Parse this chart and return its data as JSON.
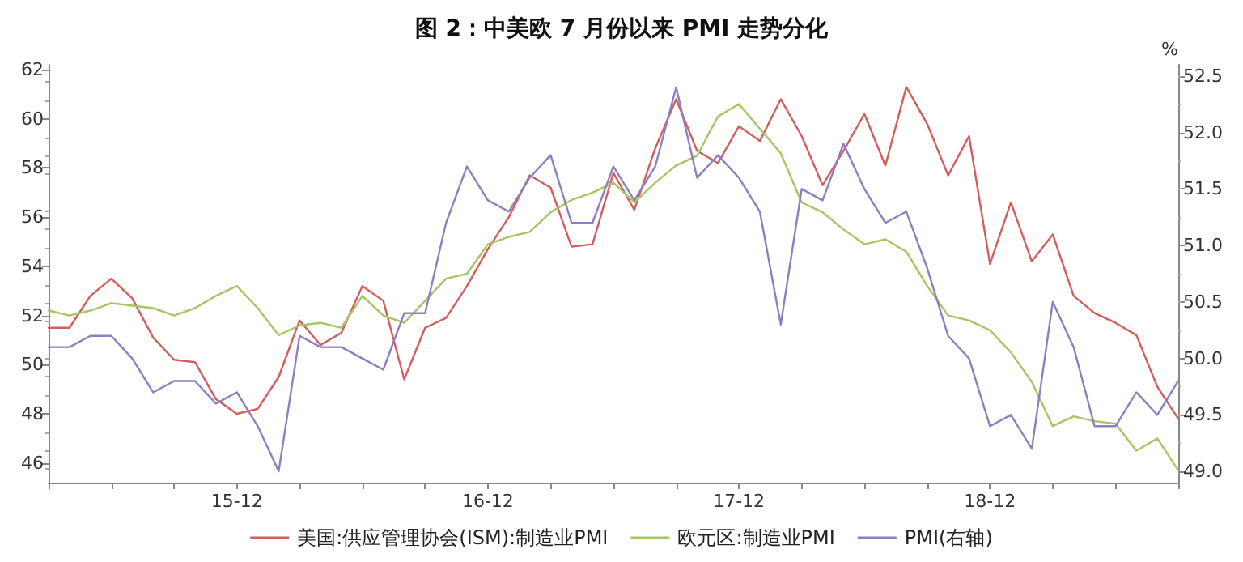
{
  "chart_data": {
    "type": "line",
    "title": "图 2：中美欧 7 月份以来 PMI 走势分化",
    "categories": [
      null,
      null,
      null,
      null,
      null,
      null,
      null,
      null,
      null,
      "15-12",
      null,
      null,
      null,
      null,
      null,
      null,
      null,
      null,
      null,
      null,
      null,
      "16-12",
      null,
      null,
      null,
      null,
      null,
      null,
      null,
      null,
      null,
      null,
      null,
      "17-12",
      null,
      null,
      null,
      null,
      null,
      null,
      null,
      null,
      null,
      null,
      null,
      "18-12",
      null,
      null,
      null,
      null,
      null,
      null,
      null,
      null,
      null
    ],
    "series": [
      {
        "name": "美国:供应管理协会(ISM):制造业PMI",
        "color": "#d45d5d",
        "values": [
          51.5,
          51.5,
          52.8,
          53.5,
          52.7,
          51.1,
          50.2,
          50.1,
          48.6,
          48.0,
          48.2,
          49.5,
          51.8,
          50.8,
          51.3,
          53.2,
          52.6,
          49.4,
          51.5,
          51.9,
          53.2,
          54.7,
          56.0,
          57.7,
          57.2,
          54.8,
          54.9,
          57.8,
          56.3,
          58.8,
          60.8,
          58.7,
          58.2,
          59.7,
          59.1,
          60.8,
          59.3,
          57.3,
          58.7,
          60.2,
          58.1,
          61.3,
          59.8,
          57.7,
          59.3,
          54.1,
          56.6,
          54.2,
          55.3,
          52.8,
          52.1,
          51.7,
          51.2,
          49.1,
          47.8
        ]
      },
      {
        "name": "欧元区:制造业PMI",
        "color": "#a5c663",
        "values": [
          52.2,
          52.0,
          52.2,
          52.5,
          52.4,
          52.3,
          52.0,
          52.3,
          52.8,
          53.2,
          52.3,
          51.2,
          51.6,
          51.7,
          51.5,
          52.8,
          52.0,
          51.7,
          52.6,
          53.5,
          53.7,
          54.9,
          55.2,
          55.4,
          56.2,
          56.7,
          57.0,
          57.4,
          56.6,
          57.4,
          58.1,
          58.5,
          60.1,
          60.6,
          59.6,
          58.6,
          56.6,
          56.2,
          55.5,
          54.9,
          55.1,
          54.6,
          53.2,
          52.0,
          51.8,
          51.4,
          50.5,
          49.3,
          47.5,
          47.9,
          47.7,
          47.6,
          46.5,
          47.0,
          45.7
        ]
      },
      {
        "name": "PMI(右轴)",
        "color": "#8e7fc0",
        "axis": "y2",
        "values": [
          50.1,
          50.1,
          50.2,
          50.2,
          50.0,
          49.7,
          49.8,
          49.8,
          49.6,
          49.7,
          49.4,
          49.0,
          50.2,
          50.1,
          50.1,
          50.0,
          49.9,
          50.4,
          50.4,
          51.2,
          51.7,
          51.4,
          51.3,
          51.6,
          51.8,
          51.2,
          51.2,
          51.7,
          51.4,
          51.7,
          52.4,
          51.6,
          51.8,
          51.6,
          51.3,
          50.3,
          51.5,
          51.4,
          51.9,
          51.5,
          51.2,
          51.3,
          50.8,
          50.2,
          50.0,
          49.4,
          49.5,
          49.2,
          50.5,
          50.1,
          49.4,
          49.4,
          49.7,
          49.5,
          49.8
        ]
      }
    ],
    "ylim": [
      45.2,
      62.2
    ],
    "yticks": [
      46,
      48,
      50,
      52,
      54,
      56,
      58,
      60,
      62
    ],
    "y2lim": [
      48.9,
      52.6
    ],
    "y2ticks": [
      {
        "value": 49,
        "label": "49.0"
      },
      {
        "value": 49.5,
        "label": "49.5"
      },
      {
        "value": 50,
        "label": "50.0"
      },
      {
        "value": 50.5,
        "label": "50.5"
      },
      {
        "value": 51,
        "label": "51.0"
      },
      {
        "value": 51.5,
        "label": "51.5"
      },
      {
        "value": 52,
        "label": "52.0"
      },
      {
        "value": 52.5,
        "label": "52.5"
      }
    ],
    "y2label": "%",
    "grid": false,
    "legend": "bottom",
    "marker": "none",
    "line_style": "solid"
  }
}
